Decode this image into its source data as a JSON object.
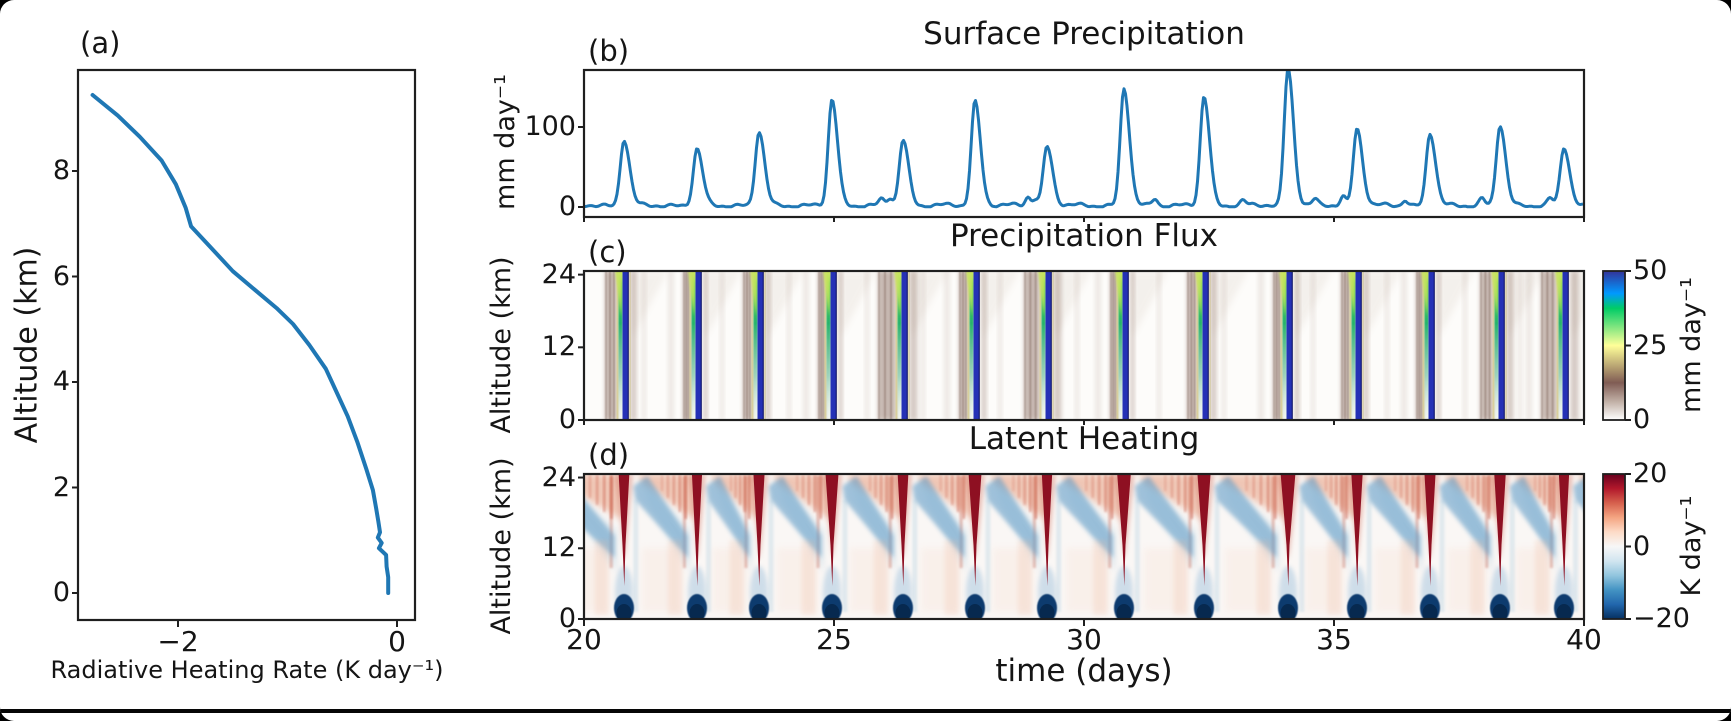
{
  "figure": {
    "panel_a": {
      "tag": "(a)",
      "xlabel": "Radiative Heating Rate (K day⁻¹)",
      "ylabel": "Altitude (km)",
      "xtick_labels": [
        "−2",
        "0"
      ],
      "ytick_labels": [
        "0",
        "2",
        "4",
        "6",
        "8"
      ]
    },
    "panel_b": {
      "tag": "(b)",
      "title": "Surface Precipitation",
      "ylabel": "mm day⁻¹",
      "ytick_labels": [
        "0",
        "100"
      ]
    },
    "panel_c": {
      "tag": "(c)",
      "title": "Precipitation Flux",
      "ylabel": "Altitude (km)",
      "ytick_labels": [
        "0",
        "12",
        "24"
      ],
      "colorbar_tick_labels": [
        "0",
        "25",
        "50"
      ],
      "colorbar_label": "mm day⁻¹"
    },
    "panel_d": {
      "tag": "(d)",
      "title": "Latent Heating",
      "ylabel": "Altitude (km)",
      "ytick_labels": [
        "0",
        "12",
        "24"
      ],
      "colorbar_tick_labels": [
        "−20",
        "0",
        "20"
      ],
      "colorbar_label": "K day⁻¹"
    },
    "x_axis": {
      "label": "time (days)",
      "tick_labels": [
        "20",
        "25",
        "30",
        "35",
        "40"
      ]
    },
    "colors": {
      "line": "#1f77b4",
      "spine": "#1f1f1f"
    }
  },
  "chart_data": [
    {
      "type": "line",
      "panel": "a",
      "xlabel": "Radiative Heating Rate (K day⁻¹)",
      "ylabel": "Altitude (km)",
      "xlim": [
        -2.9,
        0.15
      ],
      "ylim": [
        -0.5,
        9.9
      ],
      "xticks": [
        -2,
        0
      ],
      "yticks": [
        0,
        2,
        4,
        6,
        8
      ],
      "line_color": "#1f77b4",
      "points_heating_vs_altitude": [
        [
          -2.78,
          9.44
        ],
        [
          -2.55,
          9.05
        ],
        [
          -2.35,
          8.65
        ],
        [
          -2.15,
          8.2
        ],
        [
          -2.02,
          7.75
        ],
        [
          -1.93,
          7.3
        ],
        [
          -1.88,
          6.95
        ],
        [
          -1.7,
          6.55
        ],
        [
          -1.5,
          6.1
        ],
        [
          -1.3,
          5.75
        ],
        [
          -1.1,
          5.4
        ],
        [
          -0.95,
          5.1
        ],
        [
          -0.8,
          4.7
        ],
        [
          -0.65,
          4.25
        ],
        [
          -0.55,
          3.8
        ],
        [
          -0.45,
          3.35
        ],
        [
          -0.36,
          2.85
        ],
        [
          -0.28,
          2.35
        ],
        [
          -0.22,
          1.95
        ],
        [
          -0.19,
          1.6
        ],
        [
          -0.17,
          1.35
        ],
        [
          -0.155,
          1.15
        ],
        [
          -0.175,
          1.05
        ],
        [
          -0.14,
          0.95
        ],
        [
          -0.165,
          0.85
        ],
        [
          -0.1,
          0.72
        ],
        [
          -0.095,
          0.5
        ],
        [
          -0.08,
          0.3
        ],
        [
          -0.08,
          0.0
        ]
      ]
    },
    {
      "type": "line",
      "panel": "b",
      "title": "Surface Precipitation",
      "ylabel": "mm day⁻¹",
      "xlim": [
        20,
        40
      ],
      "ylim": [
        -13,
        172
      ],
      "yticks": [
        0,
        100
      ],
      "line_color": "#1f77b4",
      "baseline_mm_day": "~0-5 between events",
      "events": [
        {
          "day": 20.8,
          "peak": 82
        },
        {
          "day": 22.26,
          "peak": 70
        },
        {
          "day": 23.5,
          "peak": 92
        },
        {
          "day": 24.96,
          "peak": 132
        },
        {
          "day": 26.38,
          "peak": 82
        },
        {
          "day": 27.82,
          "peak": 130
        },
        {
          "day": 29.26,
          "peak": 74
        },
        {
          "day": 30.8,
          "peak": 146
        },
        {
          "day": 32.4,
          "peak": 136
        },
        {
          "day": 34.08,
          "peak": 172
        },
        {
          "day": 35.46,
          "peak": 96
        },
        {
          "day": 36.92,
          "peak": 90
        },
        {
          "day": 38.32,
          "peak": 100
        },
        {
          "day": 39.6,
          "peak": 72
        }
      ],
      "minor_bumps": [
        {
          "day": 25.95,
          "peak": 7
        },
        {
          "day": 26.12,
          "peak": 9
        },
        {
          "day": 28.88,
          "peak": 11
        },
        {
          "day": 29.03,
          "peak": 8
        },
        {
          "day": 31.42,
          "peak": 9
        },
        {
          "day": 33.18,
          "peak": 6
        },
        {
          "day": 34.62,
          "peak": 7
        },
        {
          "day": 35.18,
          "peak": 12
        },
        {
          "day": 36.42,
          "peak": 7
        },
        {
          "day": 37.96,
          "peak": 9
        },
        {
          "day": 39.32,
          "peak": 9
        }
      ]
    },
    {
      "type": "heatmap",
      "panel": "c",
      "title": "Precipitation Flux",
      "xlabel": "time (days)",
      "ylabel": "Altitude (km)",
      "xlim": [
        20,
        40
      ],
      "ylim": [
        0,
        24.6
      ],
      "yticks": [
        0,
        12,
        24
      ],
      "colormap": "terrain_r",
      "vmin": 0,
      "vmax": 50,
      "colorbar": {
        "ticks": [
          0,
          25,
          50
        ],
        "label": "mm day⁻¹"
      },
      "event_days": [
        20.8,
        22.26,
        23.5,
        24.96,
        26.38,
        27.82,
        29.26,
        30.8,
        32.4,
        34.08,
        35.46,
        36.92,
        38.32,
        39.6
      ],
      "description": "Narrow full-depth precipitation shafts (blue core ~50 mm/day flanked by green/yellow) at each event, diffuse weak brown flux bands (5-15 mm/day) nearby, near-zero (white) elsewhere"
    },
    {
      "type": "heatmap",
      "panel": "d",
      "title": "Latent Heating",
      "xlabel": "time (days)",
      "ylabel": "Altitude (km)",
      "xlim": [
        20,
        40
      ],
      "ylim": [
        0,
        24.6
      ],
      "yticks": [
        0,
        12,
        24
      ],
      "colormap": "RdBu_r",
      "vmin": -20,
      "vmax": 20,
      "colorbar": {
        "ticks": [
          -20,
          0,
          20
        ],
        "label": "K day⁻¹"
      },
      "event_days": [
        20.8,
        22.26,
        23.5,
        24.96,
        26.38,
        27.82,
        29.26,
        30.8,
        32.4,
        34.08,
        35.46,
        36.92,
        38.32,
        39.6
      ],
      "description": "Deep red heating plumes (>=20 K/day) widening with height at each event, dark blue boundary-layer cooling (<=-20 K/day) at plume bases, blue cooling layers descending between events beneath weak upper-level red heating"
    }
  ]
}
